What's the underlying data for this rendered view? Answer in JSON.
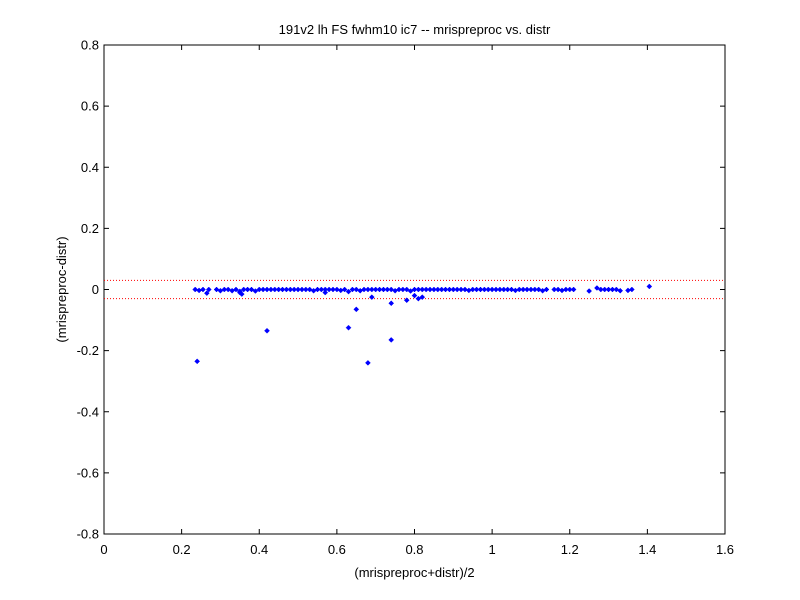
{
  "chart_data": {
    "type": "scatter",
    "title": "191v2 lh FS fwhm10 ic7 -- mrispreproc vs. distr",
    "xlabel": "(mrispreproc+distr)/2",
    "ylabel": "(mrispreproc-distr)",
    "xlim": [
      0,
      1.6
    ],
    "ylim": [
      -0.8,
      0.8
    ],
    "xticks": [
      0,
      0.2,
      0.4,
      0.6,
      0.8,
      1,
      1.2,
      1.4,
      1.6
    ],
    "yticks": [
      -0.8,
      -0.6,
      -0.4,
      -0.2,
      0,
      0.2,
      0.4,
      0.6,
      0.8
    ],
    "xtick_labels": [
      "0",
      "0.2",
      "0.4",
      "0.6",
      "0.8",
      "1",
      "1.2",
      "1.4",
      "1.6"
    ],
    "ytick_labels": [
      "-0.8",
      "-0.6",
      "-0.4",
      "-0.2",
      "0",
      "0.2",
      "0.4",
      "0.6",
      "0.8"
    ],
    "grid": false,
    "marker_color": "#0000ff",
    "reference_line_color": "#ff0000",
    "reference_lines": [
      0.03,
      -0.03
    ],
    "series": [
      {
        "marker": "diamond",
        "x": [
          0.235,
          0.245,
          0.255,
          0.265,
          0.27,
          0.29,
          0.3,
          0.31,
          0.32,
          0.33,
          0.34,
          0.35,
          0.355,
          0.36,
          0.37,
          0.38,
          0.39,
          0.4,
          0.41,
          0.42,
          0.43,
          0.44,
          0.45,
          0.46,
          0.47,
          0.48,
          0.49,
          0.5,
          0.51,
          0.52,
          0.53,
          0.54,
          0.55,
          0.56,
          0.57,
          0.58,
          0.59,
          0.6,
          0.61,
          0.62,
          0.63,
          0.64,
          0.65,
          0.66,
          0.67,
          0.68,
          0.69,
          0.7,
          0.71,
          0.72,
          0.73,
          0.74,
          0.75,
          0.76,
          0.77,
          0.78,
          0.79,
          0.8,
          0.81,
          0.82,
          0.83,
          0.84,
          0.85,
          0.86,
          0.87,
          0.88,
          0.89,
          0.9,
          0.91,
          0.92,
          0.93,
          0.94,
          0.95,
          0.96,
          0.97,
          0.98,
          0.99,
          1.0,
          1.01,
          1.02,
          1.03,
          1.04,
          1.05,
          1.06,
          1.07,
          1.08,
          1.09,
          1.1,
          1.11,
          1.12,
          1.13,
          1.14,
          1.16,
          1.17,
          1.18,
          1.19,
          1.2,
          1.21,
          1.25,
          1.27,
          1.28,
          1.29,
          1.3,
          1.31,
          1.32,
          1.33,
          1.35,
          1.36,
          1.405,
          0.24,
          0.42,
          0.63,
          0.65,
          0.68,
          0.74,
          0.74,
          0.78,
          0.8,
          0.81,
          0.82,
          0.69,
          0.57,
          0.35
        ],
        "y": [
          0.0,
          -0.003,
          0.0,
          -0.012,
          0.0,
          0.0,
          -0.004,
          0.0,
          0.0,
          -0.004,
          0.0,
          -0.006,
          -0.015,
          0.0,
          0.0,
          0.0,
          -0.005,
          0.0,
          0.0,
          0.0,
          0.0,
          0.0,
          0.0,
          0.0,
          0.0,
          0.0,
          0.0,
          0.0,
          0.0,
          0.0,
          0.0,
          -0.004,
          0.0,
          0.0,
          0.0,
          0.0,
          0.0,
          0.0,
          -0.003,
          0.0,
          -0.007,
          0.0,
          0.0,
          -0.004,
          0.0,
          0.0,
          0.0,
          0.0,
          0.0,
          0.0,
          0.0,
          0.0,
          -0.004,
          0.0,
          0.0,
          0.0,
          -0.005,
          0.0,
          0.0,
          0.0,
          0.0,
          0.0,
          0.0,
          0.0,
          0.0,
          0.0,
          0.0,
          0.0,
          0.0,
          0.0,
          0.0,
          -0.003,
          0.0,
          0.0,
          0.0,
          0.0,
          0.0,
          0.0,
          0.0,
          0.0,
          0.0,
          0.0,
          0.0,
          -0.003,
          0.0,
          0.0,
          0.0,
          0.0,
          0.0,
          0.0,
          -0.004,
          0.0,
          0.0,
          0.0,
          -0.003,
          0.0,
          0.0,
          0.0,
          -0.005,
          0.005,
          0.0,
          0.0,
          0.0,
          0.0,
          0.0,
          -0.004,
          -0.003,
          0.0,
          0.01,
          -0.235,
          -0.135,
          -0.125,
          -0.065,
          -0.24,
          -0.165,
          -0.045,
          -0.035,
          -0.02,
          -0.03,
          -0.025,
          -0.025,
          -0.01,
          -0.01
        ]
      }
    ]
  }
}
